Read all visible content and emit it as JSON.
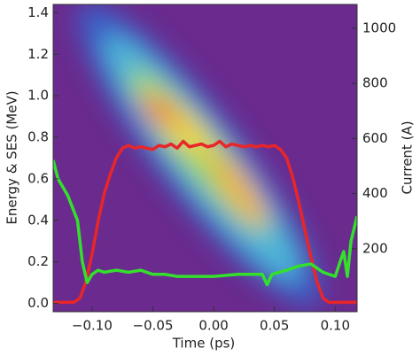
{
  "chart_data": {
    "type": "line",
    "x_label": "Time (ps)",
    "y_label": "Energy & SES (MeV)",
    "y2_label": "Current (A)",
    "xlim": [
      -0.132,
      0.118
    ],
    "ylim": [
      -0.04,
      1.44
    ],
    "y2lim": [
      -29,
      1087
    ],
    "xticks": [
      {
        "value": -0.1,
        "label": "−0.10"
      },
      {
        "value": -0.05,
        "label": "−0.05"
      },
      {
        "value": 0,
        "label": "0.00"
      },
      {
        "value": 0.05,
        "label": "0.05"
      },
      {
        "value": 0.1,
        "label": "0.10"
      }
    ],
    "yticks": [
      {
        "value": 0,
        "label": "0.0"
      },
      {
        "value": 0.2,
        "label": "0.2"
      },
      {
        "value": 0.4,
        "label": "0.4"
      },
      {
        "value": 0.6,
        "label": "0.6"
      },
      {
        "value": 0.8,
        "label": "0.8"
      },
      {
        "value": 1,
        "label": "1.0"
      },
      {
        "value": 1.2,
        "label": "1.2"
      },
      {
        "value": 1.4,
        "label": "1.4"
      }
    ],
    "y2ticks": [
      200,
      400,
      600,
      800,
      1000
    ],
    "series": [
      {
        "color": "#e8262a",
        "axis": "y2",
        "x": [
          -0.132,
          -0.115,
          -0.11,
          -0.105,
          -0.1,
          -0.095,
          -0.09,
          -0.085,
          -0.08,
          -0.075,
          -0.07,
          -0.065,
          -0.06,
          -0.055,
          -0.05,
          -0.045,
          -0.04,
          -0.035,
          -0.03,
          -0.025,
          -0.02,
          -0.015,
          -0.01,
          -0.005,
          0,
          0.005,
          0.01,
          0.015,
          0.02,
          0.025,
          0.03,
          0.035,
          0.04,
          0.045,
          0.05,
          0.055,
          0.06,
          0.065,
          0.07,
          0.075,
          0.08,
          0.085,
          0.09,
          0.095,
          0.118
        ],
        "values": [
          5,
          5,
          20,
          80,
          180,
          300,
          400,
          470,
          530,
          565,
          575,
          565,
          570,
          565,
          560,
          575,
          570,
          580,
          565,
          590,
          570,
          575,
          580,
          570,
          575,
          590,
          570,
          580,
          575,
          570,
          575,
          570,
          575,
          570,
          575,
          560,
          530,
          460,
          370,
          270,
          170,
          80,
          20,
          5,
          5
        ]
      },
      {
        "color": "#33e02c",
        "x": [
          -0.132,
          -0.128,
          -0.12,
          -0.112,
          -0.108,
          -0.104,
          -0.1,
          -0.095,
          -0.09,
          -0.08,
          -0.07,
          -0.06,
          -0.05,
          -0.04,
          -0.03,
          -0.02,
          0,
          0.02,
          0.04,
          0.044,
          0.048,
          0.06,
          0.07,
          0.08,
          0.09,
          0.1,
          0.104,
          0.107,
          0.11,
          0.113,
          0.118
        ],
        "values": [
          0.69,
          0.6,
          0.52,
          0.4,
          0.2,
          0.1,
          0.14,
          0.16,
          0.15,
          0.16,
          0.15,
          0.16,
          0.14,
          0.14,
          0.13,
          0.13,
          0.13,
          0.14,
          0.14,
          0.09,
          0.14,
          0.16,
          0.18,
          0.19,
          0.15,
          0.13,
          0.2,
          0.25,
          0.13,
          0.3,
          0.42
        ]
      }
    ]
  }
}
